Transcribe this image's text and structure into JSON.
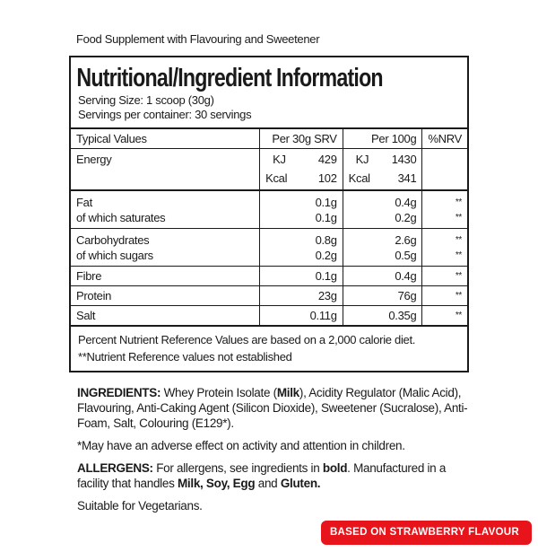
{
  "top_line": "Food Supplement with Flavouring and Sweetener",
  "title": "Nutritional/Ingredient Information",
  "serving_size": "Serving Size: 1 scoop (30g)",
  "servings": "Servings per container: 30 servings",
  "table": {
    "headers": [
      "Typical Values",
      "Per 30g SRV",
      "Per 100g",
      "%NRV"
    ],
    "energy": {
      "label": "Energy",
      "kj_label": "KJ",
      "kcal_label": "Kcal",
      "srv_kj": "429",
      "srv_kcal": "102",
      "p100_kj": "1430",
      "p100_kcal": "341"
    },
    "rows": [
      {
        "labels": [
          "Fat",
          "of which saturates"
        ],
        "srv": [
          "0.1g",
          "0.1g"
        ],
        "p100": [
          "0.4g",
          "0.2g"
        ],
        "nrv": [
          "**",
          "**"
        ]
      },
      {
        "labels": [
          "Carbohydrates",
          "of which sugars"
        ],
        "srv": [
          "0.8g",
          "0.2g"
        ],
        "p100": [
          "2.6g",
          "0.5g"
        ],
        "nrv": [
          "**",
          "**"
        ]
      },
      {
        "labels": [
          "Fibre"
        ],
        "srv": [
          "0.1g"
        ],
        "p100": [
          "0.4g"
        ],
        "nrv": [
          "**"
        ]
      },
      {
        "labels": [
          "Protein"
        ],
        "srv": [
          "23g"
        ],
        "p100": [
          "76g"
        ],
        "nrv": [
          "**"
        ]
      },
      {
        "labels": [
          "Salt"
        ],
        "srv": [
          "0.11g"
        ],
        "p100": [
          "0.35g"
        ],
        "nrv": [
          "**"
        ]
      }
    ]
  },
  "footnote1": "Percent Nutrient Reference Values are based on a 2,000 calorie diet.",
  "footnote2": "**Nutrient Reference values not established",
  "ingredients": {
    "label": "INGREDIENTS:",
    "t1": " Whey Protein Isolate (",
    "milk": "Milk",
    "t2": "), Acidity Regulator (Malic Acid), Flavouring, Anti-Caking Agent (Silicon Dioxide), Sweetener (Sucralose), Anti-Foam, Salt, Colouring (E129*)."
  },
  "warning": "*May have an adverse effect on activity and attention in children.",
  "allergens": {
    "label": "ALLERGENS:",
    "t1": " For allergens, see ingredients in ",
    "bold": "bold",
    "t2": ". Manufactured in a facility that handles ",
    "list": "Milk, Soy, Egg",
    "t3": " and ",
    "gluten": "Gluten."
  },
  "vegetarian": "Suitable for Vegetarians.",
  "badge": {
    "text": "BASED ON STRAWBERRY FLAVOUR",
    "color": "#e8141b"
  }
}
